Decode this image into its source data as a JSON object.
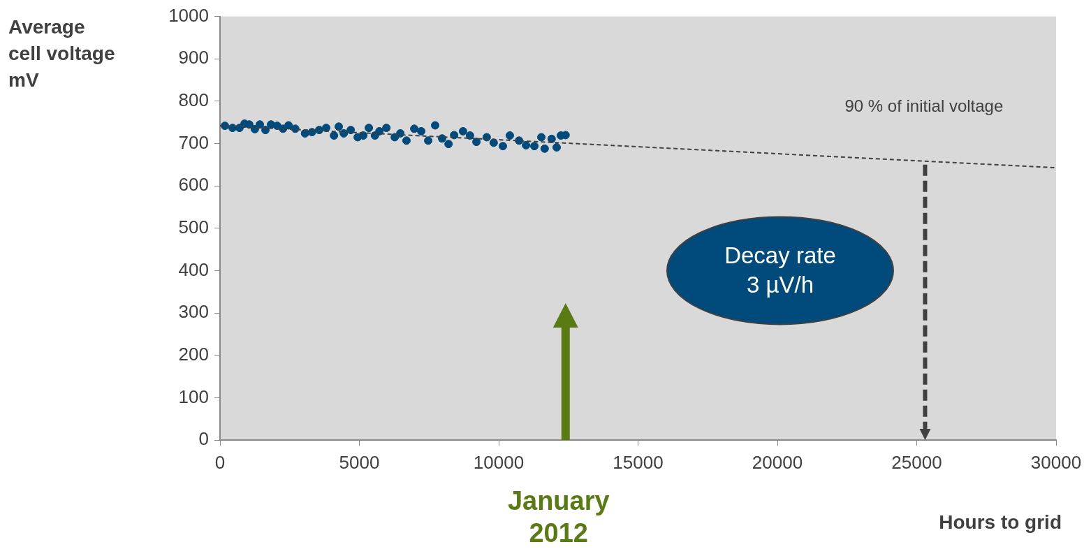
{
  "chart_data": {
    "type": "scatter",
    "ylabel": "Average\ncell voltage\nmV",
    "xlabel": "Hours to grid",
    "xlim": [
      0,
      30000
    ],
    "xticks": [
      0,
      5000,
      10000,
      15000,
      20000,
      25000,
      30000
    ],
    "ylim": [
      0,
      1000
    ],
    "yticks": [
      0,
      100,
      200,
      300,
      400,
      500,
      600,
      700,
      800,
      900,
      1000
    ],
    "grid": false,
    "legend": false,
    "marker": "circle",
    "series": [
      {
        "color": "#004a7c",
        "x": [
          175,
          450,
          700,
          880,
          1050,
          1250,
          1430,
          1630,
          1830,
          2050,
          2260,
          2460,
          2700,
          3050,
          3300,
          3560,
          3810,
          4090,
          4260,
          4440,
          4690,
          4940,
          5140,
          5340,
          5560,
          5720,
          5970,
          6270,
          6470,
          6690,
          6970,
          7220,
          7470,
          7720,
          7970,
          8200,
          8400,
          8720,
          8970,
          9200,
          9570,
          9820,
          10150,
          10400,
          10730,
          10980,
          11280,
          11530,
          11650,
          11900,
          12080,
          12230,
          12400
        ],
        "values": [
          742,
          737,
          737,
          747,
          745,
          734,
          745,
          732,
          745,
          742,
          735,
          743,
          735,
          724,
          727,
          732,
          737,
          719,
          740,
          724,
          732,
          715,
          719,
          737,
          719,
          729,
          737,
          715,
          724,
          707,
          735,
          729,
          707,
          743,
          712,
          699,
          720,
          729,
          719,
          704,
          715,
          702,
          694,
          719,
          707,
          696,
          694,
          715,
          688,
          711,
          691,
          719,
          720
        ]
      },
      {
        "type": "line",
        "color": "#404040",
        "line_style": "dashed",
        "marker": "none",
        "x": [
          0,
          30000
        ],
        "values": [
          742,
          643
        ]
      }
    ],
    "ref_lines": [
      {
        "axis": "x",
        "value": 12400,
        "label": "January 2012",
        "color": "#5a7a14"
      }
    ],
    "annotations": [
      {
        "text": "90 % of initial voltage",
        "x": 25300,
        "y": 660
      },
      "Decay rate\n3 µV/h"
    ]
  }
}
